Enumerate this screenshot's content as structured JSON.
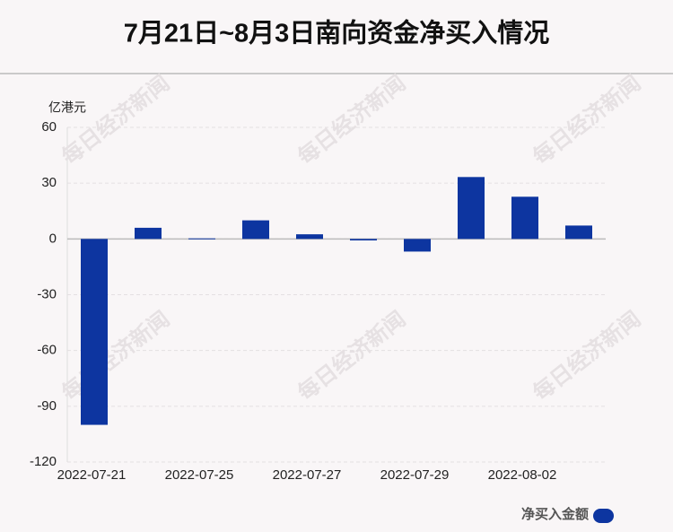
{
  "chart_data": {
    "type": "bar",
    "title": "7月21日~8月3日南向资金净买入情况",
    "y_axis_label": "亿港元",
    "watermark": "每日经济新闻",
    "categories": [
      "2022-07-21",
      null,
      "2022-07-25",
      null,
      "2022-07-27",
      null,
      "2022-07-29",
      null,
      "2022-08-02",
      null
    ],
    "series": [
      {
        "name": "净买入金额",
        "color": "#0d35a0",
        "values": [
          -100,
          6,
          0.3,
          10,
          2.5,
          -0.8,
          -6.8,
          33.3,
          22.7,
          7.2
        ]
      }
    ],
    "ylim": [
      -120,
      60
    ],
    "yticks": [
      -120,
      -90,
      -60,
      -30,
      0,
      30,
      60
    ],
    "grid": true,
    "legend": "bottom-right"
  }
}
